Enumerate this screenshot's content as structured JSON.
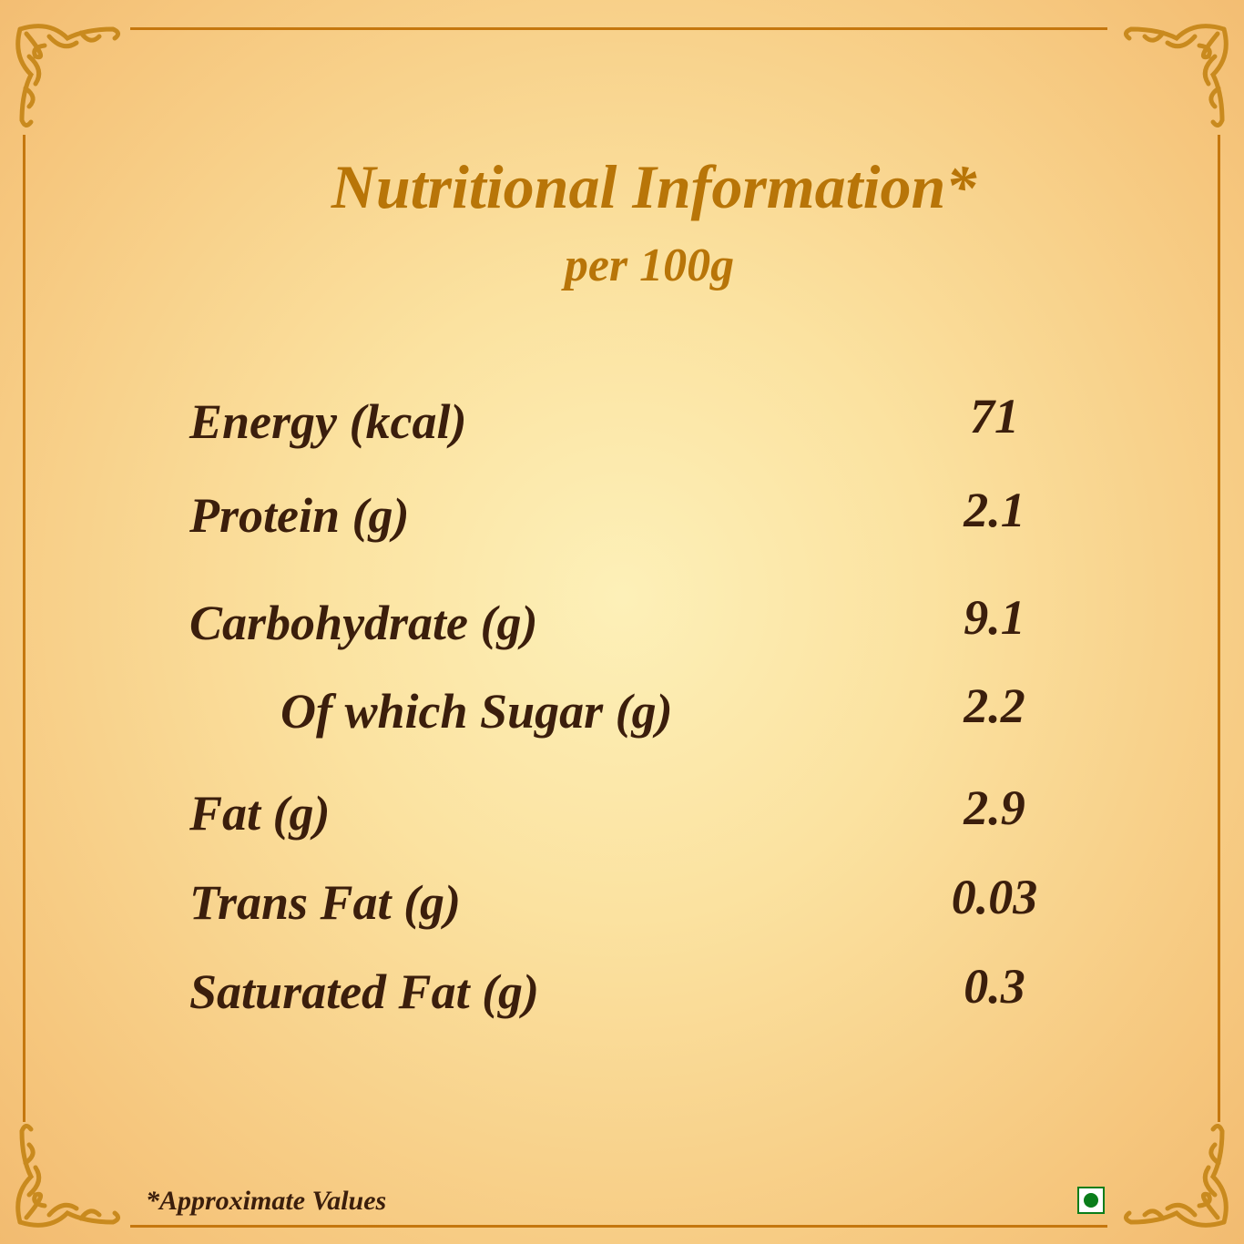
{
  "title": "Nutritional Information*",
  "subtitle": "per 100g",
  "rows": [
    {
      "label": "Energy (kcal)",
      "value": "71",
      "indent": false
    },
    {
      "label": "Protein (g)",
      "value": "2.1",
      "indent": false
    },
    {
      "label": "Carbohydrate (g)",
      "value": "9.1",
      "indent": false
    },
    {
      "label": "Of which Sugar (g)",
      "value": "2.2",
      "indent": true
    },
    {
      "label": "Fat (g)",
      "value": "2.9",
      "indent": false
    },
    {
      "label": "Trans Fat (g)",
      "value": "0.03",
      "indent": false
    },
    {
      "label": "Saturated Fat (g)",
      "value": "0.3",
      "indent": false
    }
  ],
  "footnote": "*Approximate Values",
  "icons": {
    "veg_mark": "vegetarian-symbol-icon",
    "corners": "floral-corner-ornament-icon"
  },
  "colors": {
    "title": "#b87508",
    "text": "#3b1e0c",
    "border": "#c5770e",
    "veg": "#0a7d1a"
  }
}
